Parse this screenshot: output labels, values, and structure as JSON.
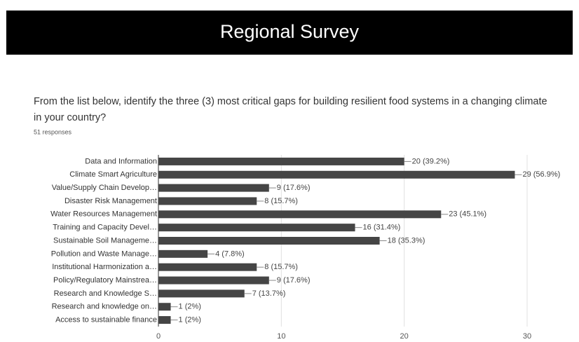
{
  "chart_data": {
    "type": "bar",
    "orientation": "horizontal",
    "title": "Regional Survey",
    "subtitle": "From the list below, identify the three (3) most critical gaps for building resilient food systems in a changing climate in your country?",
    "note": "51 responses",
    "categories": [
      "Data and Information",
      "Climate Smart Agriculture",
      "Value/Supply Chain Develop…",
      "Disaster Risk Management",
      "Water Resources Management",
      "Training and Capacity Devel…",
      "Sustainable Soil Manageme…",
      "Pollution and Waste Manage…",
      "Institutional Harmonization a…",
      "Policy/Regulatory Mainstrea…",
      "Research and Knowledge S…",
      "Research and knowledge on…",
      "Access to sustainable finance"
    ],
    "values": [
      20,
      29,
      9,
      8,
      23,
      16,
      18,
      4,
      8,
      9,
      7,
      1,
      1
    ],
    "value_labels": [
      "20 (39.2%)",
      "29 (56.9%)",
      "9 (17.6%)",
      "8 (15.7%)",
      "23 (45.1%)",
      "16 (31.4%)",
      "18 (35.3%)",
      "4 (7.8%)",
      "8 (15.7%)",
      "9 (17.6%)",
      "7 (13.7%)",
      "1 (2%)",
      "1 (2%)"
    ],
    "color": "#454545",
    "xlim": [
      0,
      30
    ],
    "xticks": [
      0,
      10,
      20,
      30
    ],
    "grid": true
  }
}
